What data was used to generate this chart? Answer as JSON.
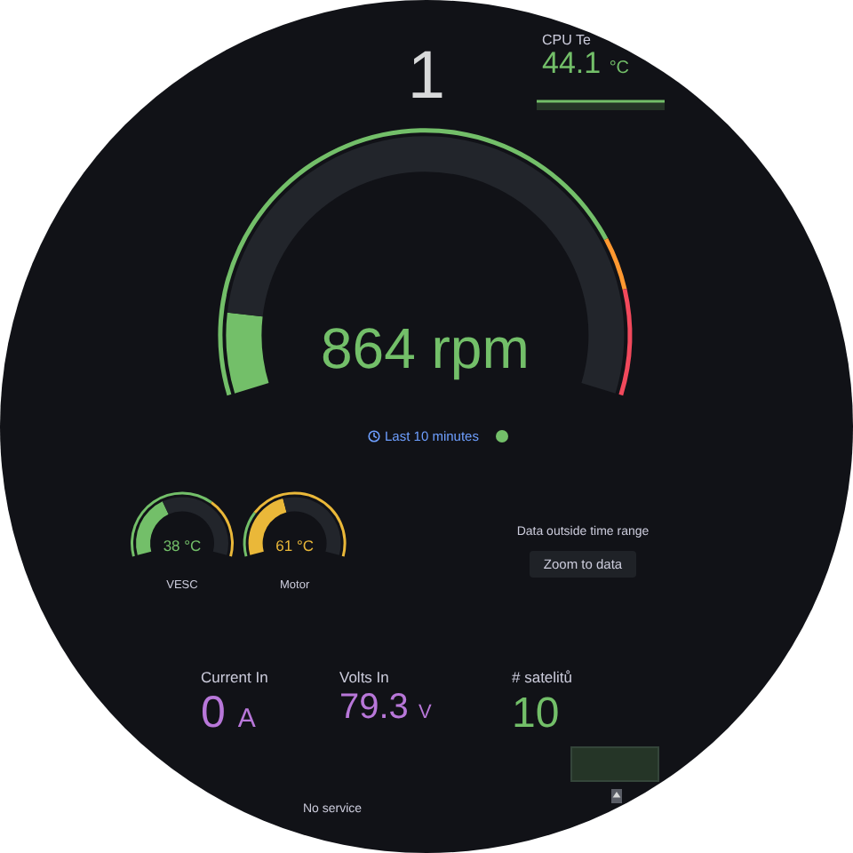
{
  "chart_data": [
    {
      "type": "other",
      "annotations": [
        "1"
      ],
      "color": "#d8d9da"
    },
    {
      "type": "other",
      "title": "CPU Te",
      "annotations": [
        "44.1 °C"
      ],
      "color": "#73bf69"
    },
    {
      "type": "donut",
      "series": [
        {
          "values": [
            11,
            89
          ],
          "colors": [
            "#73bf69",
            "#22252b"
          ]
        },
        {
          "values": [
            79,
            7,
            14
          ],
          "colors": [
            "#73bf69",
            "#ff9830",
            "#f2495c"
          ]
        }
      ],
      "annotations": [
        "864 rpm",
        "Last 10 minutes"
      ]
    },
    {
      "type": "donut",
      "title": "VESC",
      "series": [
        {
          "values": [
            38,
            62
          ],
          "colors": [
            "#73bf69",
            "#22252b"
          ]
        },
        {
          "values": [
            67,
            33
          ],
          "colors": [
            "#73bf69",
            "#eab839"
          ]
        }
      ],
      "annotations": [
        "38 °C"
      ]
    },
    {
      "type": "donut",
      "title": "Motor",
      "series": [
        {
          "values": [
            43,
            57
          ],
          "colors": [
            "#eab839",
            "#22252b"
          ]
        },
        {
          "values": [
            25,
            75
          ],
          "colors": [
            "#73bf69",
            "#eab839"
          ]
        }
      ],
      "annotations": [
        "61 °C"
      ]
    },
    {
      "type": "other",
      "annotations": [
        "Data outside time range",
        "Zoom to data"
      ]
    },
    {
      "type": "other",
      "title": "Current In",
      "annotations": [
        "0 A"
      ],
      "color": "#b877d9"
    },
    {
      "type": "other",
      "title": "Volts In",
      "annotations": [
        "79.3 V"
      ],
      "color": "#b877d9"
    },
    {
      "type": "other",
      "title": "# satelitů",
      "annotations": [
        "10"
      ],
      "color": "#73bf69"
    },
    {
      "type": "other",
      "annotations": [
        "No service"
      ]
    }
  ]
}
